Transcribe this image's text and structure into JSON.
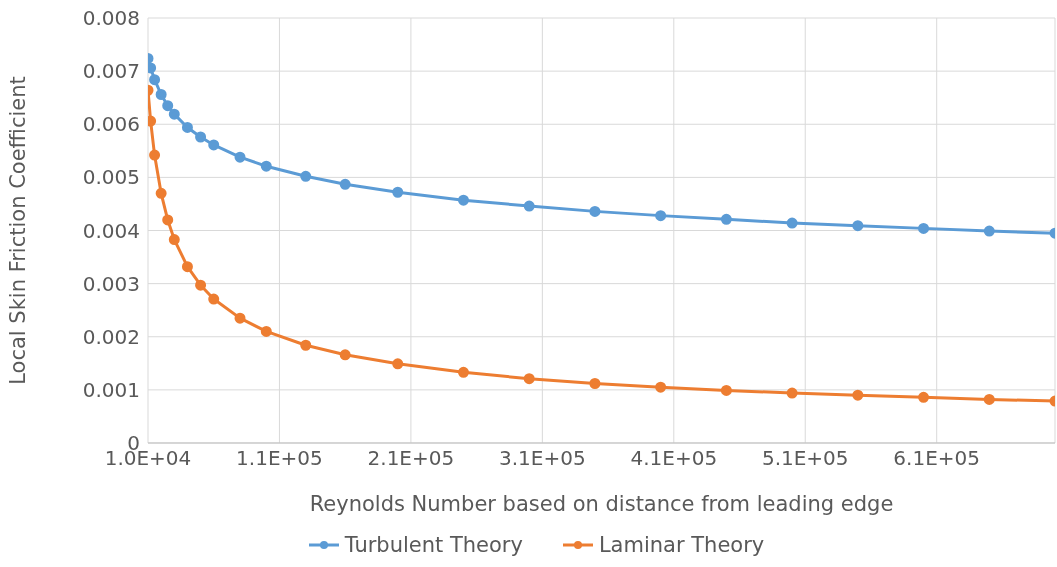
{
  "chart_data": {
    "type": "line",
    "xlabel": "Reynolds Number based on distance from leading edge",
    "ylabel": "Local Skin Friction Coefficient",
    "x": [
      10000,
      12000,
      15000,
      20000,
      25000,
      30000,
      40000,
      50000,
      60000,
      80000,
      100000,
      130000,
      160000,
      200000,
      250000,
      300000,
      350000,
      400000,
      450000,
      500000,
      550000,
      600000,
      650000,
      700000
    ],
    "series": [
      {
        "name": "Turbulent Theory",
        "color": "#5b9bd5",
        "values": [
          0.00724,
          0.00706,
          0.00684,
          0.00656,
          0.00635,
          0.00619,
          0.00594,
          0.00576,
          0.00561,
          0.00538,
          0.00521,
          0.00502,
          0.00487,
          0.00472,
          0.00457,
          0.00446,
          0.00436,
          0.00428,
          0.00421,
          0.00414,
          0.00409,
          0.00404,
          0.00399,
          0.00395
        ]
      },
      {
        "name": "Laminar Theory",
        "color": "#ed7d31",
        "values": [
          0.00664,
          0.00606,
          0.00542,
          0.0047,
          0.0042,
          0.00383,
          0.00332,
          0.00297,
          0.00271,
          0.00235,
          0.0021,
          0.00184,
          0.00166,
          0.00149,
          0.00133,
          0.00121,
          0.00112,
          0.00105,
          0.00099,
          0.00094,
          0.0009,
          0.00086,
          0.00082,
          0.00079
        ]
      }
    ],
    "xlim": [
      10000,
      700000
    ],
    "xticks": [
      {
        "value": 10000,
        "label": "1.0E+04"
      },
      {
        "value": 110000,
        "label": "1.1E+05"
      },
      {
        "value": 210000,
        "label": "2.1E+05"
      },
      {
        "value": 310000,
        "label": "3.1E+05"
      },
      {
        "value": 410000,
        "label": "4.1E+05"
      },
      {
        "value": 510000,
        "label": "5.1E+05"
      },
      {
        "value": 610000,
        "label": "6.1E+05"
      }
    ],
    "ylim": [
      0,
      0.008
    ],
    "yticks": [
      0,
      0.001,
      0.002,
      0.003,
      0.004,
      0.005,
      0.006,
      0.007,
      0.008
    ],
    "grid": true,
    "legend": "bottom",
    "marker": "circle",
    "line_style": "solid"
  }
}
